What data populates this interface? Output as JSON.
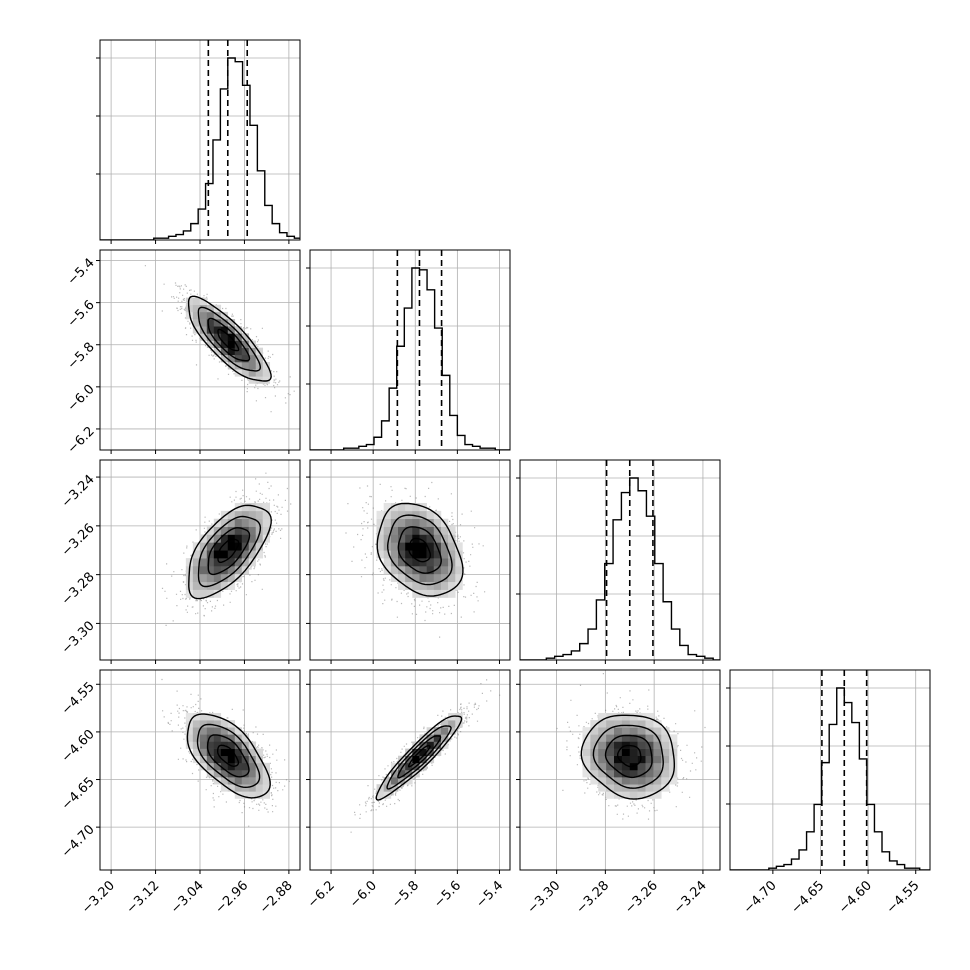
{
  "chart_data": {
    "type": "corner",
    "grid": true,
    "colors": {
      "hist": "#000000",
      "quantile": "#000000",
      "grid": "#b0b0b0",
      "points": "#7f7f7f"
    },
    "parameters": [
      {
        "range": [
          -3.22,
          -2.86
        ],
        "ticks": [
          -3.2,
          -3.12,
          -3.04,
          -2.96,
          -2.88
        ],
        "tick_labels": [
          "−3.20",
          "−3.12",
          "−3.04",
          "−2.96",
          "−2.88"
        ],
        "mean": -2.99,
        "sd": 0.037,
        "quantiles": [
          -3.025,
          -2.99,
          -2.955
        ]
      },
      {
        "range": [
          -6.3,
          -5.35
        ],
        "ticks": [
          -6.2,
          -6.0,
          -5.8,
          -5.6,
          -5.4
        ],
        "tick_labels": [
          "−6.2",
          "−6.0",
          "−5.8",
          "−5.6",
          "−5.4"
        ],
        "mean": -5.78,
        "sd": 0.1,
        "quantiles": [
          -5.885,
          -5.78,
          -5.675
        ]
      },
      {
        "range": [
          -3.315,
          -3.233
        ],
        "ticks": [
          -3.3,
          -3.28,
          -3.26,
          -3.24
        ],
        "tick_labels": [
          "−3.30",
          "−3.28",
          "−3.26",
          "−3.24"
        ],
        "mean": -3.27,
        "sd": 0.0095,
        "quantiles": [
          -3.2795,
          -3.27,
          -3.2605
        ]
      },
      {
        "range": [
          -4.745,
          -4.535
        ],
        "ticks": [
          -4.7,
          -4.65,
          -4.6,
          -4.55
        ],
        "tick_labels": [
          "−4.70",
          "−4.65",
          "−4.60",
          "−4.55"
        ],
        "mean": -4.625,
        "sd": 0.022,
        "quantiles": [
          -4.6485,
          -4.625,
          -4.6015
        ]
      }
    ],
    "hist_counts": [
      [
        1,
        1,
        2,
        3,
        5,
        9,
        17,
        31,
        55,
        83,
        100,
        98,
        85,
        63,
        38,
        19,
        9,
        4,
        2,
        1
      ],
      [
        1,
        1,
        2,
        3,
        7,
        16,
        34,
        57,
        78,
        100,
        99,
        88,
        67,
        41,
        19,
        8,
        3,
        2,
        1,
        1
      ],
      [
        1,
        2,
        3,
        5,
        9,
        17,
        33,
        53,
        77,
        92,
        100,
        93,
        79,
        53,
        32,
        17,
        8,
        3,
        2,
        1
      ],
      [
        1,
        2,
        3,
        6,
        11,
        21,
        36,
        59,
        80,
        100,
        92,
        81,
        61,
        36,
        21,
        10,
        5,
        3,
        1,
        1
      ]
    ],
    "correlations": {
      "1-0": -0.82,
      "2-0": 0.62,
      "2-1": -0.3,
      "3-0": -0.6,
      "3-1": 0.93,
      "3-2": -0.1
    },
    "contour_levels": [
      0.5,
      1.0,
      1.5,
      2.0
    ]
  }
}
